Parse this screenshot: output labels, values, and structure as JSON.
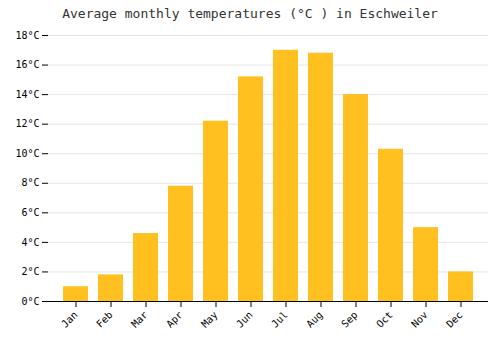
{
  "chart_data": {
    "type": "bar",
    "title": "Average monthly temperatures (°C ) in Eschweiler",
    "categories": [
      "Jan",
      "Feb",
      "Mar",
      "Apr",
      "May",
      "Jun",
      "Jul",
      "Aug",
      "Sep",
      "Oct",
      "Nov",
      "Dec"
    ],
    "values": [
      1.0,
      1.8,
      4.6,
      7.8,
      12.2,
      15.2,
      17.0,
      16.8,
      14.0,
      10.3,
      5.0,
      2.0
    ],
    "color": "#FFC020",
    "ylim": [
      0,
      18
    ],
    "yticks": [
      {
        "value": 0,
        "label": "0°C"
      },
      {
        "value": 2,
        "label": "2°C"
      },
      {
        "value": 4,
        "label": "4°C"
      },
      {
        "value": 6,
        "label": "6°C"
      },
      {
        "value": 8,
        "label": "8°C"
      },
      {
        "value": 10,
        "label": "10°C"
      },
      {
        "value": 12,
        "label": "12°C"
      },
      {
        "value": 14,
        "label": "14°C"
      },
      {
        "value": 16,
        "label": "16°C"
      },
      {
        "value": 18,
        "label": "18°C"
      }
    ],
    "grid": true
  }
}
